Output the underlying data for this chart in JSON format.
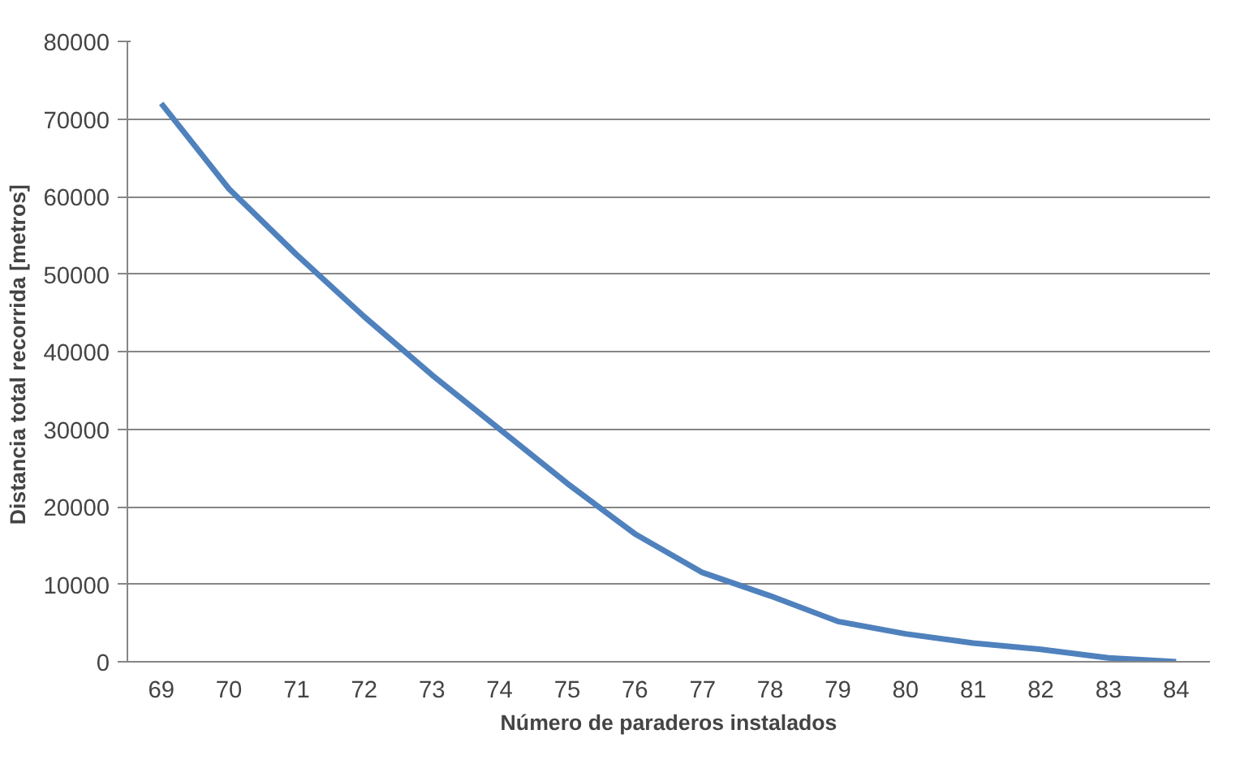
{
  "chart_data": {
    "type": "line",
    "xlabel": "Número de paraderos instalados",
    "ylabel": "Distancia  total recorrida [metros]",
    "categories": [
      "69",
      "70",
      "71",
      "72",
      "73",
      "74",
      "75",
      "76",
      "77",
      "78",
      "79",
      "80",
      "81",
      "82",
      "83",
      "84"
    ],
    "series": [
      {
        "color": "#4f81bd",
        "values": [
          72000,
          61000,
          52500,
          44500,
          37000,
          30000,
          23000,
          16500,
          11500,
          8500,
          5200,
          3600,
          2400,
          1600,
          500,
          0
        ]
      }
    ],
    "ylim": [
      0,
      80000
    ],
    "yticks": [
      0,
      10000,
      20000,
      30000,
      40000,
      50000,
      60000,
      70000,
      80000
    ],
    "grid": "y",
    "marker": "none",
    "line_style": "solid"
  }
}
